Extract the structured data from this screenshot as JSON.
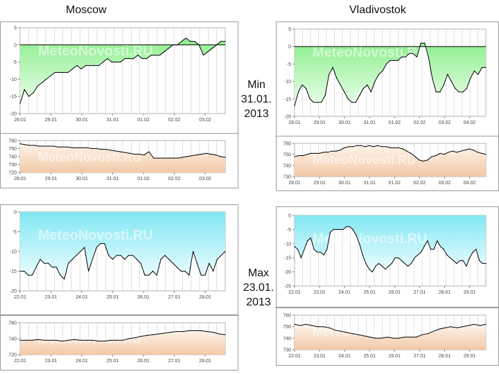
{
  "headers": {
    "left_city": "Moscow",
    "right_city": "Vladivostok"
  },
  "min_label": {
    "line1": "Min",
    "line2": "31.01.",
    "line3": "2013"
  },
  "max_label": {
    "line1": "Max",
    "line2": "23.01.",
    "line3": "2013"
  },
  "watermark": "MeteoNovosti.RU",
  "colors": {
    "temp_fill": "#88ee88",
    "temp_fill_light": "#eaffea",
    "cold_fill": "#7ae6f3",
    "cold_fill_light": "#eefdff",
    "press_fill": "#f2c6a2",
    "press_fill_light": "#fdf3ea",
    "grid": "#c8c8c8",
    "line": "#000000"
  },
  "chart_data": [
    {
      "id": "moscow-min-temp",
      "type": "area",
      "ylim": [
        -20,
        5
      ],
      "yticks": [
        5,
        0,
        -5,
        -10,
        -15,
        -20
      ],
      "xticks": [
        "28.01",
        "29.01",
        "30.01",
        "31.01",
        "01.02",
        "02.02",
        "03.02"
      ],
      "values": [
        -17,
        -13,
        -15,
        -14,
        -12,
        -11,
        -10,
        -9,
        -8,
        -8,
        -8,
        -8,
        -7,
        -6,
        -7,
        -6,
        -6,
        -6,
        -6,
        -5,
        -4,
        -5,
        -5,
        -5,
        -4,
        -4,
        -4,
        -3,
        -4,
        -4,
        -3,
        -3,
        -3,
        -2,
        -1,
        0,
        0,
        1,
        2,
        1,
        1,
        0,
        -3,
        -2,
        -1,
        0,
        1,
        1
      ]
    },
    {
      "id": "moscow-min-press",
      "type": "area",
      "ylim": [
        720,
        760
      ],
      "yticks": [
        760,
        750,
        740,
        730,
        720
      ],
      "xticks": [
        "28.01",
        "29.01",
        "30.01",
        "31.01",
        "01.02",
        "02.02",
        "03.02"
      ],
      "values": [
        756,
        755,
        754,
        754,
        753,
        753,
        753,
        753,
        752,
        752,
        752,
        751,
        751,
        751,
        751,
        750,
        750,
        749,
        749,
        748,
        747,
        746,
        745,
        744,
        743,
        743,
        742,
        746,
        738,
        738,
        738,
        738,
        738,
        738,
        739,
        740,
        741,
        742,
        743,
        744,
        743,
        742,
        740,
        739
      ]
    },
    {
      "id": "vladivostok-min-temp",
      "type": "area",
      "ylim": [
        -20,
        5
      ],
      "yticks": [
        5,
        0,
        -5,
        -10,
        -15,
        -20
      ],
      "xticks": [
        "28.01",
        "29.01",
        "30.01",
        "31.01",
        "01.02",
        "02.02",
        "03.02",
        "04.02"
      ],
      "values": [
        -17,
        -13,
        -11,
        -12,
        -15,
        -16,
        -16,
        -16,
        -14,
        -8,
        -6,
        -9,
        -11,
        -13,
        -15,
        -16,
        -16,
        -14,
        -12,
        -11,
        -13,
        -10,
        -8,
        -7,
        -5,
        -4,
        -4,
        -4,
        -3,
        -3,
        -2,
        -2,
        -3,
        1,
        1,
        -3,
        -9,
        -13,
        -13,
        -11,
        -8,
        -10,
        -12,
        -13,
        -13,
        -12,
        -9,
        -7,
        -8,
        -6,
        -6
      ]
    },
    {
      "id": "vladivostok-min-press",
      "type": "area",
      "ylim": [
        730,
        760
      ],
      "yticks": [
        760,
        750,
        740,
        730
      ],
      "xticks": [
        "28.01",
        "29.01",
        "30.01",
        "31.01",
        "01.02",
        "02.02",
        "03.02",
        "04.02"
      ],
      "values": [
        748,
        749,
        749,
        750,
        751,
        751,
        751,
        752,
        752,
        753,
        753,
        754,
        756,
        757,
        757,
        758,
        758,
        757,
        758,
        757,
        758,
        757,
        757,
        756,
        756,
        756,
        755,
        753,
        751,
        748,
        745,
        744,
        745,
        748,
        749,
        751,
        750,
        752,
        753,
        752,
        753,
        754,
        755,
        754,
        752,
        751,
        750
      ]
    },
    {
      "id": "moscow-max-temp",
      "type": "area",
      "ylim": [
        -20,
        0
      ],
      "yticks": [
        0,
        -5,
        -10,
        -15,
        -20
      ],
      "xticks": [
        "22.01",
        "23.01",
        "24.01",
        "25.01",
        "26.01",
        "27.01",
        "28.01"
      ],
      "values": [
        -15,
        -15,
        -16,
        -16,
        -14,
        -12,
        -13,
        -13,
        -14,
        -14,
        -16,
        -17,
        -13,
        -12,
        -11,
        -10,
        -9,
        -15,
        -12,
        -9,
        -8,
        -8,
        -11,
        -12,
        -11,
        -11,
        -12,
        -11,
        -11,
        -12,
        -13,
        -16,
        -16,
        -15,
        -16,
        -12,
        -11,
        -12,
        -13,
        -14,
        -15,
        -15,
        -16,
        -10,
        -13,
        -16,
        -16,
        -13,
        -15,
        -12,
        -11,
        -10
      ]
    },
    {
      "id": "moscow-max-press",
      "type": "area",
      "ylim": [
        720,
        760
      ],
      "yticks": [
        760,
        740,
        720
      ],
      "xticks": [
        "22.01",
        "23.01",
        "24.01",
        "25.01",
        "26.01",
        "27.01",
        "28.01"
      ],
      "values": [
        738,
        738,
        738,
        739,
        738,
        738,
        738,
        737,
        738,
        739,
        738,
        738,
        738,
        737,
        737,
        738,
        738,
        738,
        740,
        741,
        743,
        744,
        745,
        746,
        747,
        748,
        749,
        749,
        750,
        750,
        750,
        749,
        748,
        746,
        745
      ]
    },
    {
      "id": "vladivostok-max-temp",
      "type": "area",
      "ylim": [
        -25,
        0
      ],
      "yticks": [
        0,
        -5,
        -10,
        -15,
        -20,
        -25
      ],
      "xticks": [
        "22.01",
        "23.01",
        "24.01",
        "25.01",
        "26.01",
        "27.01",
        "28.01",
        "29.01"
      ],
      "values": [
        -11,
        -12,
        -15,
        -12,
        -9,
        -8,
        -12,
        -13,
        -13,
        -14,
        -12,
        -6,
        -5,
        -5,
        -5,
        -5,
        -4,
        -4,
        -5,
        -7,
        -10,
        -14,
        -17,
        -19,
        -20,
        -18,
        -17,
        -18,
        -19,
        -18,
        -17,
        -15,
        -15,
        -16,
        -17,
        -18,
        -17,
        -15,
        -14,
        -13,
        -11,
        -9,
        -12,
        -12,
        -9,
        -11,
        -12,
        -14,
        -15,
        -16,
        -17,
        -16,
        -16,
        -18,
        -15,
        -13,
        -12,
        -16,
        -17,
        -17
      ]
    },
    {
      "id": "vladivostok-max-press",
      "type": "area",
      "ylim": [
        730,
        760
      ],
      "yticks": [
        760,
        750,
        740,
        730
      ],
      "xticks": [
        "22.01",
        "23.01",
        "24.01",
        "25.01",
        "26.01",
        "27.01",
        "28.01",
        "29.01"
      ],
      "values": [
        752,
        751,
        752,
        751,
        750,
        750,
        749,
        747,
        746,
        745,
        744,
        743,
        742,
        741,
        740,
        740,
        741,
        740,
        740,
        741,
        741,
        741,
        743,
        744,
        746,
        748,
        749,
        750,
        749,
        750,
        751,
        752,
        751,
        752
      ]
    }
  ]
}
